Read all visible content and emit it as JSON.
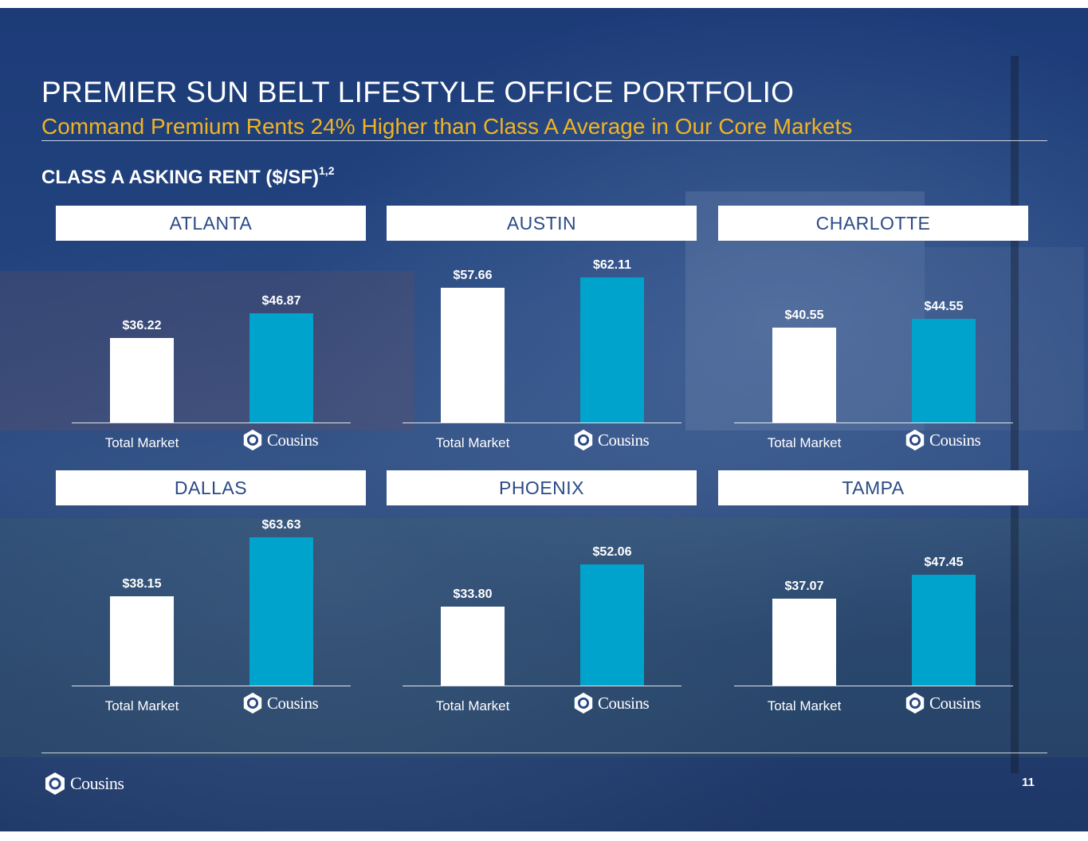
{
  "title": "PREMIER SUN BELT LIFESTYLE OFFICE PORTFOLIO",
  "subtitle": "Command Premium Rents 24% Higher than Class A Average in Our Core Markets",
  "section_title": "CLASS A ASKING RENT ($/SF)",
  "section_superscript": "1,2",
  "brand": "Cousins",
  "page_number": "11",
  "colors": {
    "market_bar": "#ffffff",
    "cousins_bar": "#00a3cc",
    "subtitle": "#f0b323",
    "panel_text": "#2a4a86"
  },
  "chart_data": [
    {
      "type": "bar",
      "title": "ATLANTA",
      "categories": [
        "Total Market",
        "Cousins"
      ],
      "values": [
        36.22,
        46.87
      ],
      "labels": [
        "$36.22",
        "$46.87"
      ],
      "ylim": [
        0,
        70
      ],
      "grid": false
    },
    {
      "type": "bar",
      "title": "AUSTIN",
      "categories": [
        "Total Market",
        "Cousins"
      ],
      "values": [
        57.66,
        62.11
      ],
      "labels": [
        "$57.66",
        "$62.11"
      ],
      "ylim": [
        0,
        70
      ],
      "grid": false
    },
    {
      "type": "bar",
      "title": "CHARLOTTE",
      "categories": [
        "Total Market",
        "Cousins"
      ],
      "values": [
        40.55,
        44.55
      ],
      "labels": [
        "$40.55",
        "$44.55"
      ],
      "ylim": [
        0,
        70
      ],
      "grid": false
    },
    {
      "type": "bar",
      "title": "DALLAS",
      "categories": [
        "Total Market",
        "Cousins"
      ],
      "values": [
        38.15,
        63.63
      ],
      "labels": [
        "$38.15",
        "$63.63"
      ],
      "ylim": [
        0,
        70
      ],
      "grid": false
    },
    {
      "type": "bar",
      "title": "PHOENIX",
      "categories": [
        "Total Market",
        "Cousins"
      ],
      "values": [
        33.8,
        52.06
      ],
      "labels": [
        "$33.80",
        "$52.06"
      ],
      "ylim": [
        0,
        70
      ],
      "grid": false
    },
    {
      "type": "bar",
      "title": "TAMPA",
      "categories": [
        "Total Market",
        "Cousins"
      ],
      "values": [
        37.07,
        47.45
      ],
      "labels": [
        "$37.07",
        "$47.45"
      ],
      "ylim": [
        0,
        70
      ],
      "grid": false
    }
  ]
}
